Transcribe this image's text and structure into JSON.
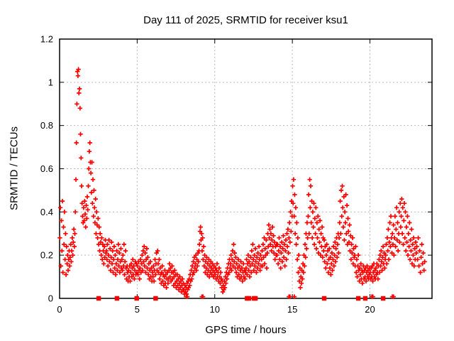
{
  "chart_data": {
    "type": "scatter",
    "title": "Day 111 of 2025, SRMTID for receiver ksu1",
    "xlabel": "GPS time / hours",
    "ylabel": "SRMTID / TECUs",
    "xlim": [
      0,
      24
    ],
    "ylim": [
      0,
      1.2
    ],
    "x_ticks": [
      "0",
      "5",
      "10",
      "15",
      "20"
    ],
    "y_ticks": [
      "0",
      "0.2",
      "0.4",
      "0.6",
      "0.8",
      "1",
      "1.2"
    ],
    "grid": true,
    "legend": "none",
    "marker": "plus",
    "marker_color": "#ff0000",
    "flag_marker": "filled-square",
    "flag_marker_color": "#ff0000",
    "series_name": "SRMTID",
    "points_per_hour_note": "y values sampled uniformly within each hour, units TECUs",
    "y_by_hour": {
      "0": [
        0.28,
        0.42,
        0.15,
        0.36,
        0.22,
        0.45,
        0.12,
        0.33,
        0.25,
        0.4,
        0.18,
        0.3,
        0.11,
        0.24,
        0.16,
        0.2,
        0.13,
        0.18,
        0.22,
        0.15,
        0.19,
        0.25,
        0.17,
        0.22,
        0.28,
        0.2,
        0.26,
        0.32,
        0.24,
        0.3
      ],
      "1": [
        0.4,
        0.55,
        0.72,
        0.9,
        1.05,
        1.03,
        1.06,
        0.95,
        0.97,
        0.88,
        0.76,
        0.65,
        0.52,
        0.44,
        0.38,
        0.35,
        0.42,
        0.36,
        0.45,
        0.39,
        0.33,
        0.43,
        0.37,
        0.47,
        0.41,
        0.52,
        0.6,
        0.68,
        0.72,
        0.63
      ],
      "2": [
        0.58,
        0.49,
        0.63,
        0.44,
        0.55,
        0.38,
        0.5,
        0.42,
        0.35,
        0.46,
        0.3,
        0.4,
        0.34,
        0.28,
        0.37,
        0.25,
        0.33,
        0.22,
        0.3,
        0.26,
        0.2,
        0.28,
        0.18,
        0.25,
        0.22,
        0.16,
        0.24,
        0.19,
        0.27,
        0.21
      ],
      "3": [
        0.22,
        0.18,
        0.25,
        0.15,
        0.2,
        0.27,
        0.17,
        0.23,
        0.13,
        0.19,
        0.26,
        0.16,
        0.22,
        0.12,
        0.18,
        0.24,
        0.14,
        0.2,
        0.11,
        0.16,
        0.22,
        0.13,
        0.18,
        0.25,
        0.15,
        0.21,
        0.12,
        0.17,
        0.23,
        0.14
      ],
      "4": [
        0.18,
        0.13,
        0.2,
        0.15,
        0.25,
        0.11,
        0.17,
        0.22,
        0.14,
        0.09,
        0.15,
        0.12,
        0.08,
        0.13,
        0.1,
        0.15,
        0.08,
        0.12,
        0.16,
        0.1,
        0.14,
        0.18,
        0.11,
        0.15,
        0.09,
        0.13,
        0.17,
        0.11,
        0.16,
        0.12
      ],
      "5": [
        0.15,
        0.11,
        0.17,
        0.13,
        0.09,
        0.14,
        0.18,
        0.12,
        0.16,
        0.2,
        0.13,
        0.22,
        0.17,
        0.24,
        0.15,
        0.21,
        0.12,
        0.18,
        0.23,
        0.14,
        0.19,
        0.11,
        0.16,
        0.09,
        0.13,
        0.17,
        0.1,
        0.14,
        0.08,
        0.12
      ],
      "6": [
        0.1,
        0.15,
        0.08,
        0.13,
        0.18,
        0.11,
        0.16,
        0.21,
        0.13,
        0.22,
        0.16,
        0.12,
        0.18,
        0.09,
        0.14,
        0.11,
        0.07,
        0.12,
        0.15,
        0.08,
        0.11,
        0.06,
        0.1,
        0.13,
        0.07,
        0.11,
        0.05,
        0.09,
        0.12,
        0.07
      ],
      "7": [
        0.09,
        0.13,
        0.16,
        0.1,
        0.14,
        0.08,
        0.12,
        0.15,
        0.09,
        0.12,
        0.06,
        0.1,
        0.13,
        0.07,
        0.11,
        0.05,
        0.08,
        0.11,
        0.06,
        0.09,
        0.04,
        0.07,
        0.1,
        0.05,
        0.08,
        0.03,
        0.06,
        0.09,
        0.04,
        0.07
      ],
      "8": [
        0.04,
        0.02,
        0.06,
        0.03,
        0.05,
        0.02,
        0.07,
        0.04,
        0.08,
        0.05,
        0.09,
        0.06,
        0.11,
        0.08,
        0.13,
        0.09,
        0.15,
        0.11,
        0.17,
        0.12,
        0.19,
        0.14,
        0.16,
        0.2,
        0.13,
        0.18,
        0.15,
        0.21,
        0.17,
        0.22
      ],
      "9": [
        0.25,
        0.31,
        0.33,
        0.27,
        0.3,
        0.22,
        0.28,
        0.18,
        0.24,
        0.15,
        0.2,
        0.12,
        0.17,
        0.14,
        0.19,
        0.11,
        0.16,
        0.13,
        0.18,
        0.1,
        0.15,
        0.12,
        0.17,
        0.14,
        0.11,
        0.16,
        0.13,
        0.1,
        0.15,
        0.12
      ],
      "10": [
        0.11,
        0.14,
        0.09,
        0.13,
        0.16,
        0.1,
        0.12,
        0.08,
        0.14,
        0.1,
        0.07,
        0.12,
        0.09,
        0.05,
        0.08,
        0.03,
        0.06,
        0.04,
        0.08,
        0.05,
        0.1,
        0.07,
        0.12,
        0.09,
        0.14,
        0.11,
        0.16,
        0.12,
        0.18,
        0.14
      ],
      "11": [
        0.16,
        0.2,
        0.13,
        0.18,
        0.22,
        0.15,
        0.25,
        0.17,
        0.21,
        0.14,
        0.19,
        0.12,
        0.16,
        0.1,
        0.14,
        0.18,
        0.11,
        0.15,
        0.09,
        0.13,
        0.17,
        0.1,
        0.14,
        0.08,
        0.12,
        0.16,
        0.1,
        0.13,
        0.09,
        0.12
      ],
      "12": [
        0.14,
        0.18,
        0.11,
        0.16,
        0.2,
        0.13,
        0.17,
        0.1,
        0.15,
        0.19,
        0.12,
        0.22,
        0.16,
        0.25,
        0.18,
        0.13,
        0.2,
        0.15,
        0.23,
        0.17,
        0.12,
        0.19,
        0.14,
        0.21,
        0.16,
        0.24,
        0.18,
        0.13,
        0.2,
        0.15
      ],
      "13": [
        0.18,
        0.22,
        0.15,
        0.25,
        0.19,
        0.28,
        0.16,
        0.23,
        0.2,
        0.27,
        0.14,
        0.21,
        0.3,
        0.24,
        0.34,
        0.28,
        0.32,
        0.25,
        0.3,
        0.22,
        0.27,
        0.33,
        0.24,
        0.29,
        0.21,
        0.26,
        0.18,
        0.24,
        0.2,
        0.25
      ],
      "14": [
        0.2,
        0.25,
        0.16,
        0.22,
        0.28,
        0.18,
        0.24,
        0.14,
        0.21,
        0.26,
        0.17,
        0.23,
        0.29,
        0.19,
        0.25,
        0.15,
        0.22,
        0.27,
        0.18,
        0.3,
        0.24,
        0.32,
        0.21,
        0.28,
        0.35,
        0.26,
        0.4,
        0.31,
        0.45,
        0.38
      ],
      "15": [
        0.52,
        0.44,
        0.55,
        0.38,
        0.48,
        0.3,
        0.42,
        0.25,
        0.35,
        0.18,
        0.28,
        0.12,
        0.2,
        0.08,
        0.14,
        0.05,
        0.1,
        0.07,
        0.13,
        0.09,
        0.16,
        0.12,
        0.2,
        0.15,
        0.25,
        0.19,
        0.3,
        0.23,
        0.35,
        0.28
      ],
      "16": [
        0.38,
        0.48,
        0.3,
        0.55,
        0.42,
        0.52,
        0.35,
        0.45,
        0.28,
        0.4,
        0.33,
        0.44,
        0.25,
        0.37,
        0.3,
        0.42,
        0.23,
        0.35,
        0.28,
        0.38,
        0.21,
        0.32,
        0.26,
        0.36,
        0.2,
        0.3,
        0.24,
        0.33,
        0.19,
        0.28
      ],
      "17": [
        0.22,
        0.27,
        0.17,
        0.24,
        0.14,
        0.2,
        0.25,
        0.16,
        0.22,
        0.12,
        0.18,
        0.23,
        0.14,
        0.19,
        0.11,
        0.16,
        0.21,
        0.13,
        0.18,
        0.24,
        0.15,
        0.2,
        0.26,
        0.17,
        0.23,
        0.28,
        0.19,
        0.25,
        0.3,
        0.21
      ],
      "18": [
        0.28,
        0.35,
        0.45,
        0.3,
        0.5,
        0.38,
        0.52,
        0.42,
        0.33,
        0.47,
        0.27,
        0.4,
        0.35,
        0.48,
        0.3,
        0.43,
        0.25,
        0.37,
        0.31,
        0.26,
        0.34,
        0.22,
        0.29,
        0.18,
        0.25,
        0.21,
        0.28,
        0.16,
        0.23,
        0.19
      ],
      "19": [
        0.2,
        0.15,
        0.24,
        0.12,
        0.18,
        0.1,
        0.15,
        0.2,
        0.13,
        0.08,
        0.14,
        0.11,
        0.16,
        0.09,
        0.13,
        0.07,
        0.12,
        0.15,
        0.09,
        0.13,
        0.1,
        0.14,
        0.08,
        0.12,
        0.15,
        0.1,
        0.13,
        0.09,
        0.11,
        0.14
      ],
      "20": [
        0.12,
        0.09,
        0.14,
        0.1,
        0.15,
        0.08,
        0.12,
        0.16,
        0.1,
        0.13,
        0.09,
        0.14,
        0.11,
        0.16,
        0.12,
        0.09,
        0.15,
        0.18,
        0.12,
        0.2,
        0.15,
        0.22,
        0.17,
        0.13,
        0.19,
        0.24,
        0.16,
        0.21,
        0.14,
        0.18
      ],
      "21": [
        0.2,
        0.25,
        0.16,
        0.28,
        0.22,
        0.32,
        0.18,
        0.26,
        0.35,
        0.24,
        0.38,
        0.28,
        0.21,
        0.3,
        0.25,
        0.34,
        0.2,
        0.28,
        0.38,
        0.24,
        0.32,
        0.42,
        0.27,
        0.35,
        0.22,
        0.3,
        0.4,
        0.26,
        0.44,
        0.33
      ],
      "22": [
        0.38,
        0.46,
        0.3,
        0.42,
        0.25,
        0.36,
        0.44,
        0.28,
        0.4,
        0.22,
        0.33,
        0.26,
        0.38,
        0.2,
        0.3,
        0.24,
        0.35,
        0.18,
        0.27,
        0.22,
        0.32,
        0.16,
        0.25,
        0.2,
        0.28,
        0.15,
        0.23,
        0.18,
        0.26,
        0.21
      ],
      "23": {
        "y": [
          0.24,
          0.18,
          0.28,
          0.15,
          0.22,
          0.12,
          0.19,
          0.25,
          0.16,
          0.21,
          0.13,
          0.17
        ],
        "span": 0.55
      }
    },
    "near_zero_plus_x": [
      8.16,
      8.23,
      9.17,
      9.24,
      14.78,
      14.85,
      15.13,
      20.12,
      20.19,
      21.44,
      21.52
    ],
    "flag_squares_x": [
      2.52,
      3.7,
      4.97,
      6.19,
      12.08,
      12.2,
      12.53,
      12.62,
      17.05,
      19.25,
      19.7,
      20.85
    ]
  }
}
